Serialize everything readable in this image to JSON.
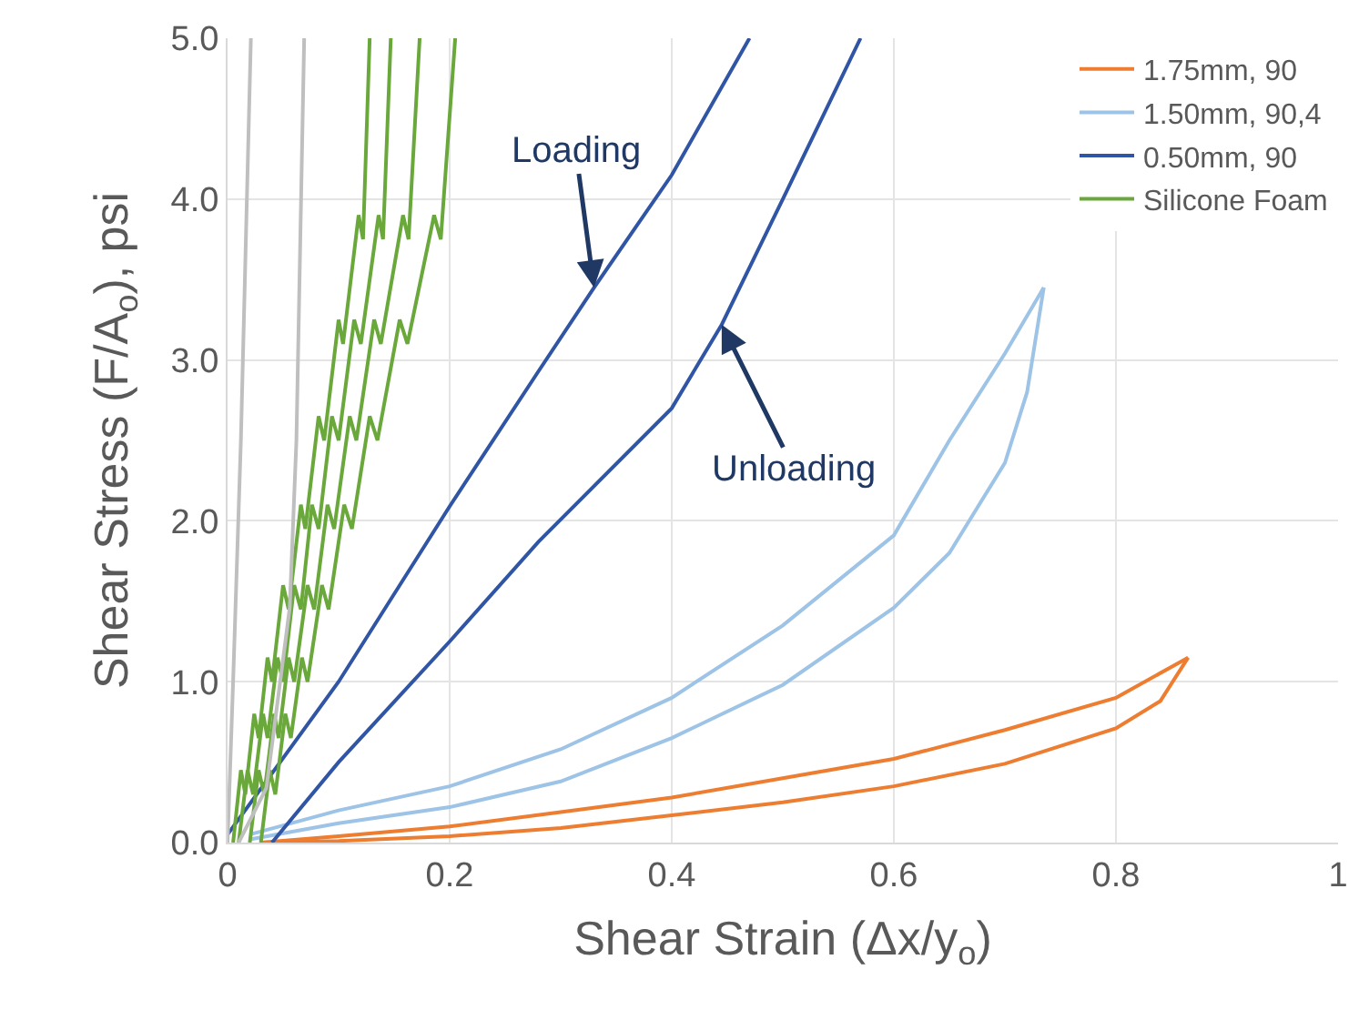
{
  "chart_data": {
    "type": "line",
    "xlabel": "Shear Strain (Δx/y$_{o}$)",
    "ylabel": "Shear Stress (F/A$_{o}$), psi",
    "xlim": [
      0,
      1
    ],
    "xticks": [
      0,
      {
        "value": 0.2,
        "label": "0.2"
      },
      {
        "value": 0.4,
        "label": "0.4"
      },
      {
        "value": 0.6,
        "label": "0.6"
      },
      {
        "value": 0.8,
        "label": "0.8"
      },
      1
    ],
    "ylim": [
      0,
      5
    ],
    "yticks": [
      {
        "value": 0,
        "label": "0.0"
      },
      {
        "value": 1,
        "label": "1.0"
      },
      {
        "value": 2,
        "label": "2.0"
      },
      {
        "value": 3,
        "label": "3.0"
      },
      {
        "value": 4,
        "label": "4.0"
      },
      {
        "value": 5,
        "label": "5.0"
      }
    ],
    "grid": true,
    "legend": "top right",
    "marker": "none",
    "line_style": "solid",
    "annotations": [
      {
        "text": "Loading",
        "x": 0.33,
        "y": 3.45
      },
      {
        "text": "Unloading",
        "x": 0.445,
        "y": 3.22
      }
    ],
    "series": [
      {
        "name": "1.75mm, 90",
        "color": "#ed7d31",
        "x": [
          0.03,
          0.1,
          0.2,
          0.3,
          0.4,
          0.5,
          0.6,
          0.7,
          0.8,
          0.84,
          0.865,
          null,
          0.865,
          0.8,
          0.7,
          0.6,
          0.5,
          0.4,
          0.3,
          0.2,
          0.1,
          0.03
        ],
        "values": [
          0,
          0.01,
          0.04,
          0.09,
          0.17,
          0.25,
          0.35,
          0.49,
          0.71,
          0.88,
          1.15,
          null,
          1.15,
          0.9,
          0.7,
          0.52,
          0.4,
          0.28,
          0.19,
          0.1,
          0.04,
          0
        ]
      },
      {
        "name": "1.50mm, 90,4",
        "color": "#9dc3e6",
        "x": [
          0.02,
          0.1,
          0.2,
          0.3,
          0.4,
          0.5,
          0.6,
          0.65,
          0.7,
          0.72,
          0.735,
          null,
          0.735,
          0.7,
          0.65,
          0.6,
          0.5,
          0.4,
          0.3,
          0.2,
          0.1,
          0.02
        ],
        "values": [
          0.02,
          0.12,
          0.22,
          0.38,
          0.65,
          0.98,
          1.46,
          1.8,
          2.36,
          2.8,
          3.45,
          null,
          3.45,
          3.04,
          2.5,
          1.91,
          1.35,
          0.9,
          0.58,
          0.35,
          0.2,
          0.05
        ]
      },
      {
        "name": "0.50mm, 90",
        "color": "#2f55a4",
        "x": [
          0.0,
          0.1,
          0.2,
          0.28,
          0.33,
          0.4,
          0.47,
          null,
          0.57,
          0.5,
          0.445,
          0.4,
          0.28,
          0.2,
          0.1,
          0.04
        ],
        "values": [
          0.05,
          1.0,
          2.09,
          2.93,
          3.45,
          4.15,
          5.0,
          null,
          5.0,
          4.0,
          3.22,
          2.7,
          1.87,
          1.25,
          0.5,
          0
        ]
      },
      {
        "name": "Silicone Foam",
        "color": "#6aa83c",
        "x": [
          0.005,
          0.012,
          0.016,
          0.024,
          0.028,
          0.036,
          0.04,
          0.05,
          0.055,
          0.066,
          0.07,
          0.082,
          0.087,
          0.1,
          0.104,
          0.118,
          0.122,
          0.128,
          null,
          0.01,
          0.018,
          0.023,
          0.032,
          0.036,
          0.045,
          0.05,
          0.06,
          0.066,
          0.076,
          0.082,
          0.094,
          0.1,
          0.114,
          0.12,
          0.136,
          0.14,
          0.147,
          null,
          0.02,
          0.028,
          0.033,
          0.042,
          0.046,
          0.055,
          0.06,
          0.072,
          0.078,
          0.09,
          0.096,
          0.11,
          0.116,
          0.132,
          0.138,
          0.158,
          0.163,
          0.173,
          null,
          0.03,
          0.038,
          0.043,
          0.052,
          0.057,
          0.067,
          0.072,
          0.085,
          0.091,
          0.105,
          0.112,
          0.128,
          0.135,
          0.155,
          0.162,
          0.186,
          0.192,
          0.205
        ],
        "values": [
          0,
          0.45,
          0.3,
          0.8,
          0.65,
          1.15,
          1.0,
          1.6,
          1.45,
          2.1,
          1.95,
          2.65,
          2.5,
          3.25,
          3.1,
          3.9,
          3.75,
          5.0,
          null,
          0,
          0.45,
          0.3,
          0.8,
          0.65,
          1.15,
          1.0,
          1.6,
          1.45,
          2.1,
          1.95,
          2.65,
          2.5,
          3.25,
          3.1,
          3.9,
          3.75,
          5.0,
          null,
          0,
          0.45,
          0.3,
          0.8,
          0.65,
          1.15,
          1.0,
          1.6,
          1.45,
          2.1,
          1.95,
          2.65,
          2.5,
          3.25,
          3.1,
          3.9,
          3.75,
          5.0,
          null,
          0,
          0.45,
          0.3,
          0.8,
          0.65,
          1.15,
          1.0,
          1.6,
          1.45,
          2.1,
          1.95,
          2.65,
          2.5,
          3.25,
          3.1,
          3.9,
          3.75,
          5.0
        ]
      },
      {
        "color": "#bfbfbf",
        "x": [
          0,
          0.005,
          0.012,
          0.021,
          null,
          0.01,
          0.035,
          0.056,
          0.062,
          0.069
        ],
        "values": [
          0,
          1,
          2.5,
          5,
          null,
          0,
          0.34,
          1.46,
          2.5,
          5
        ]
      }
    ]
  }
}
